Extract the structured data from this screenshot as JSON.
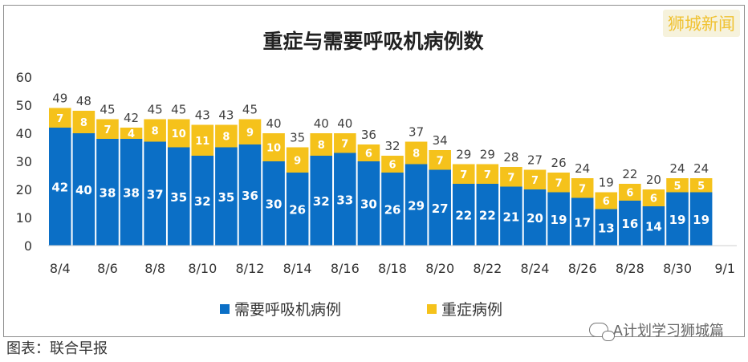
{
  "badge": "狮城新闻",
  "footer_left": "图表：联合早报",
  "footer_right": "A计划学习狮城篇",
  "colors": {
    "ventilator": "#0b6fc6",
    "severe": "#f5c21b"
  },
  "chart_data": {
    "type": "bar",
    "stacked": true,
    "title": "重症与需要呼吸机病例数",
    "categories": [
      "8/4",
      "8/5",
      "8/6",
      "8/7",
      "8/8",
      "8/9",
      "8/10",
      "8/11",
      "8/12",
      "8/13",
      "8/14",
      "8/15",
      "8/16",
      "8/17",
      "8/18",
      "8/19",
      "8/20",
      "8/21",
      "8/22",
      "8/23",
      "8/24",
      "8/25",
      "8/26",
      "8/27",
      "8/28",
      "8/29",
      "8/30",
      "8/31",
      "9/1"
    ],
    "x_tick_labels": [
      "8/4",
      "8/6",
      "8/8",
      "8/10",
      "8/12",
      "8/14",
      "8/16",
      "8/18",
      "8/20",
      "8/22",
      "8/24",
      "8/26",
      "8/28",
      "8/30",
      "9/1"
    ],
    "series": [
      {
        "name": "需要呼吸机病例",
        "values": [
          42,
          40,
          38,
          38,
          37,
          35,
          32,
          35,
          36,
          30,
          26,
          32,
          33,
          30,
          26,
          29,
          27,
          22,
          22,
          21,
          20,
          19,
          17,
          13,
          16,
          14,
          19,
          19,
          null
        ]
      },
      {
        "name": "重症病例",
        "values": [
          7,
          8,
          7,
          4,
          8,
          10,
          11,
          8,
          9,
          10,
          9,
          8,
          7,
          6,
          6,
          8,
          7,
          7,
          7,
          7,
          7,
          7,
          7,
          6,
          6,
          6,
          5,
          5,
          null
        ]
      }
    ],
    "totals": [
      49,
      48,
      45,
      42,
      45,
      45,
      43,
      43,
      45,
      40,
      35,
      40,
      40,
      36,
      32,
      37,
      34,
      29,
      29,
      28,
      27,
      26,
      24,
      19,
      22,
      20,
      24,
      24,
      null
    ],
    "ylim": [
      0,
      60
    ],
    "y_ticks": [
      0,
      10,
      20,
      30,
      40,
      50,
      60
    ],
    "grid": false,
    "legend_position": "bottom"
  }
}
